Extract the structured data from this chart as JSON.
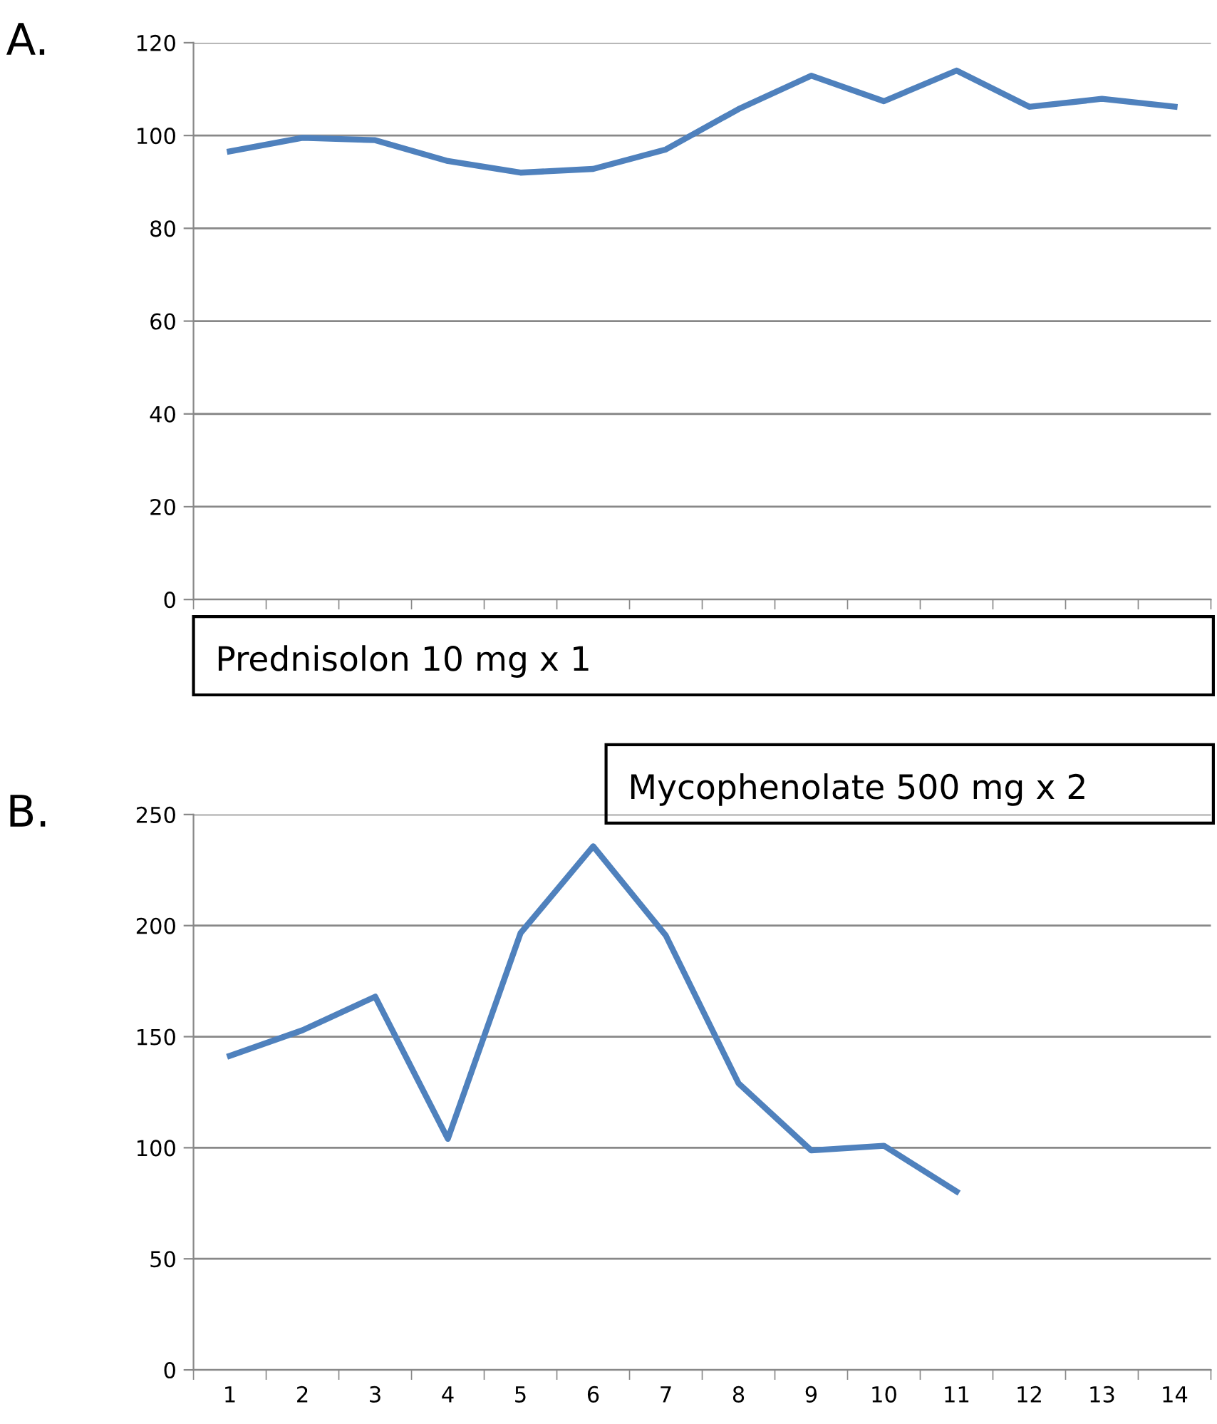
{
  "chart_data": [
    {
      "type": "line",
      "title": "A.",
      "categories": [
        null,
        null,
        null,
        null,
        null,
        null,
        null,
        null,
        null,
        null,
        null,
        null,
        null,
        null
      ],
      "series": [
        {
          "color": "#4f81bd",
          "values": [
            96.6,
            99.5,
            99,
            94.5,
            92,
            92.8,
            97,
            105.7,
            112.9,
            107.4,
            114,
            106.2,
            107.9,
            106.2
          ]
        }
      ],
      "ylim": [
        0,
        120
      ],
      "yticks": [
        0,
        20,
        40,
        60,
        80,
        100,
        120
      ],
      "grid": "y",
      "tick_labels": "y",
      "marker": "none",
      "line_style": "solid",
      "annotations": [
        "Prednisolon 10 mg x 1",
        "Mycophenolate 500 mg x 2"
      ]
    },
    {
      "type": "line",
      "title": "B.",
      "categories": [
        "1",
        "2",
        "3",
        "4",
        "5",
        "6",
        "7",
        "8",
        "9",
        "10",
        "11",
        "12",
        "13",
        "14"
      ],
      "series": [
        {
          "color": "#4f81bd",
          "values": [
            141.4,
            152.9,
            168,
            104,
            196.6,
            235.7,
            195.5,
            129,
            98.8,
            100.9,
            80.3,
            null,
            null,
            null
          ]
        }
      ],
      "ylim": [
        0,
        250
      ],
      "yticks": [
        0,
        50,
        100,
        150,
        200,
        250
      ],
      "grid": "y",
      "marker": "none",
      "line_style": "solid"
    }
  ]
}
